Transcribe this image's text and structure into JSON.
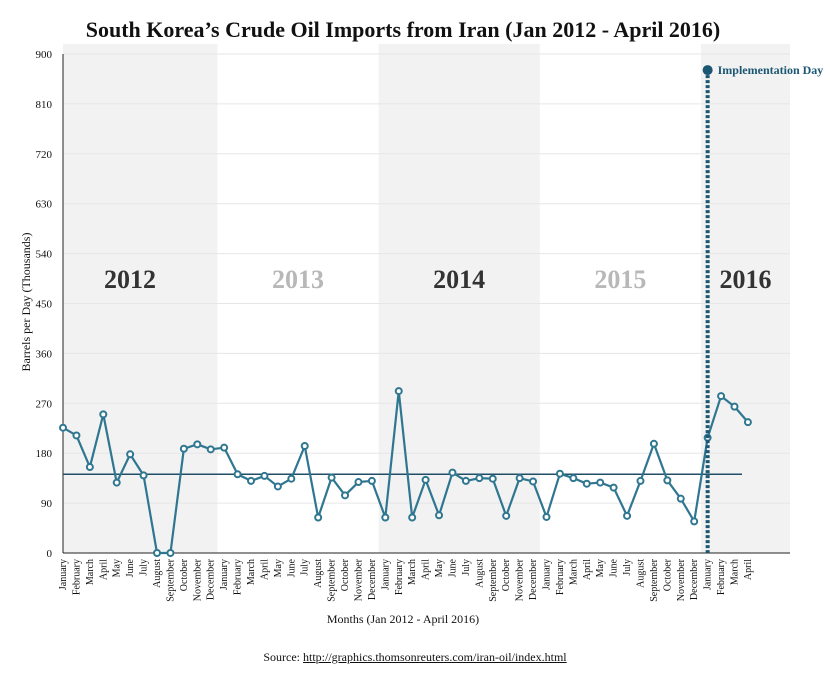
{
  "chart_data": {
    "type": "line",
    "title": "South Korea’s Crude Oil Imports from Iran (Jan 2012 - April 2016)",
    "xlabel": "Months (Jan 2012 - April 2016)",
    "ylabel": "Barrels per Day (Thousands)",
    "ylim": [
      0,
      900
    ],
    "yticks": [
      0,
      90,
      180,
      270,
      360,
      450,
      540,
      630,
      720,
      810,
      900
    ],
    "grid": true,
    "years": [
      {
        "label": "2012",
        "start": 0,
        "end": 11,
        "shaded": true
      },
      {
        "label": "2013",
        "start": 12,
        "end": 23,
        "shaded": false
      },
      {
        "label": "2014",
        "start": 24,
        "end": 35,
        "shaded": true
      },
      {
        "label": "2015",
        "start": 36,
        "end": 47,
        "shaded": false
      },
      {
        "label": "2016",
        "start": 48,
        "end": 51,
        "shaded": true
      }
    ],
    "categories": [
      "January",
      "February",
      "March",
      "April",
      "May",
      "June",
      "July",
      "August",
      "September",
      "October",
      "November",
      "December",
      "January",
      "February",
      "March",
      "April",
      "May",
      "June",
      "July",
      "August",
      "September",
      "October",
      "November",
      "December",
      "January",
      "February",
      "March",
      "April",
      "May",
      "June",
      "July",
      "August",
      "September",
      "October",
      "November",
      "December",
      "January",
      "February",
      "March",
      "April",
      "May",
      "June",
      "July",
      "August",
      "September",
      "October",
      "November",
      "December",
      "January",
      "February",
      "March",
      "April"
    ],
    "series": [
      {
        "values": [
          226,
          212,
          155,
          250,
          127,
          178,
          140,
          0,
          0,
          188,
          196,
          187,
          190,
          142,
          130,
          139,
          120,
          134,
          193,
          64,
          136,
          104,
          128,
          130,
          64,
          292,
          64,
          132,
          68,
          145,
          130,
          135,
          134,
          67,
          135,
          129,
          65,
          143,
          135,
          125,
          127,
          118,
          67,
          130,
          197,
          131,
          98,
          57,
          208,
          283,
          264,
          236
        ]
      }
    ],
    "reference_line": {
      "value": 142
    },
    "annotations": [
      {
        "text": "Implementation Day",
        "x_index": 48,
        "y": 871
      }
    ],
    "colors": {
      "line": "#2f7690",
      "reference": "#1f4e66",
      "annotation": "#1b5673",
      "shade": "#f2f2f2",
      "year_dark": "#333333",
      "year_light": "#b8b8b8"
    }
  },
  "source": {
    "prefix": "Source: ",
    "link": "http://graphics.thomsonreuters.com/iran-oil/index.html"
  }
}
